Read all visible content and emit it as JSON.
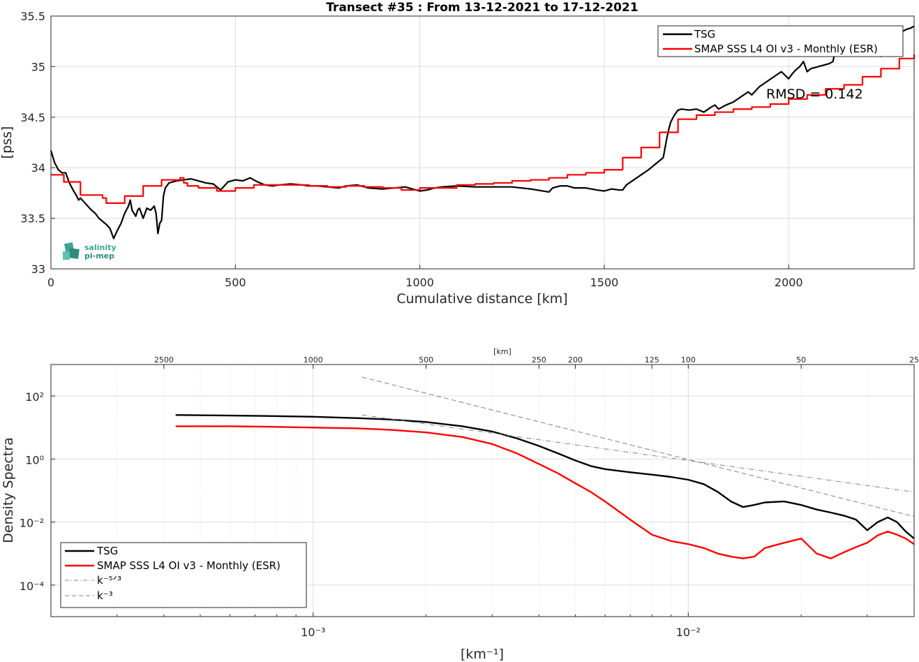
{
  "colors": {
    "tsg": "#000000",
    "smap": "#ff0000",
    "ref": "#808080",
    "logo": "#3aa693"
  },
  "logo": {
    "line1": "salinity",
    "line2": "pi-mep"
  },
  "chart_data": [
    {
      "type": "line",
      "title": "Transect #35 : From 13-12-2021 to 17-12-2021",
      "xlabel": "Cumulative distance [km]",
      "ylabel": "[pss]",
      "xlim": [
        0,
        2340
      ],
      "ylim": [
        33,
        35.5
      ],
      "xticks": [
        0,
        500,
        1000,
        1500,
        2000
      ],
      "xtick_labels": [
        "0",
        "500",
        "1000",
        "1500",
        "2000"
      ],
      "yticks": [
        33,
        33.5,
        34,
        34.5,
        35,
        35.5
      ],
      "ytick_labels": [
        "33",
        "33.5",
        "34",
        "34.5",
        "35",
        "35.5"
      ],
      "grid": true,
      "legend": "top-right",
      "annotation": "RMSD = 0.142",
      "series": [
        {
          "name": "TSG",
          "color": "#000000",
          "x": [
            0,
            10,
            20,
            30,
            40,
            50,
            60,
            70,
            75,
            80,
            90,
            100,
            110,
            120,
            130,
            140,
            150,
            160,
            165,
            170,
            180,
            190,
            200,
            210,
            215,
            220,
            225,
            230,
            235,
            240,
            250,
            260,
            270,
            280,
            285,
            290,
            295,
            300,
            305,
            310,
            320,
            340,
            360,
            380,
            400,
            420,
            440,
            460,
            465,
            470,
            480,
            500,
            520,
            540,
            560,
            580,
            600,
            620,
            650,
            680,
            700,
            720,
            750,
            780,
            800,
            830,
            860,
            900,
            930,
            960,
            1000,
            1020,
            1040,
            1060,
            1100,
            1150,
            1200,
            1250,
            1300,
            1350,
            1360,
            1380,
            1400,
            1420,
            1450,
            1480,
            1500,
            1520,
            1540,
            1550,
            1560,
            1580,
            1600,
            1620,
            1640,
            1660,
            1665,
            1670,
            1675,
            1680,
            1690,
            1700,
            1710,
            1730,
            1750,
            1770,
            1790,
            1800,
            1810,
            1830,
            1850,
            1870,
            1890,
            1900,
            1920,
            1940,
            1960,
            1980,
            2000,
            2010,
            2020,
            2030,
            2040,
            2050,
            2060,
            2080,
            2100,
            2110,
            2120,
            2130,
            2140,
            2150,
            2160,
            2170,
            2180,
            2190,
            2200,
            2210,
            2220,
            2230,
            2240,
            2250,
            2260,
            2270,
            2280,
            2290,
            2300,
            2310,
            2320,
            2330,
            2340
          ],
          "y": [
            34.17,
            34.05,
            33.98,
            33.95,
            33.95,
            33.85,
            33.78,
            33.72,
            33.68,
            33.7,
            33.66,
            33.62,
            33.58,
            33.55,
            33.5,
            33.47,
            33.44,
            33.4,
            33.35,
            33.3,
            33.38,
            33.45,
            33.55,
            33.62,
            33.68,
            33.58,
            33.55,
            33.52,
            33.58,
            33.6,
            33.5,
            33.6,
            33.58,
            33.62,
            33.55,
            33.35,
            33.45,
            33.48,
            33.72,
            33.8,
            33.85,
            33.87,
            33.88,
            33.89,
            33.87,
            33.85,
            33.84,
            33.78,
            33.8,
            33.82,
            33.86,
            33.88,
            33.87,
            33.9,
            33.86,
            33.83,
            33.82,
            33.83,
            33.84,
            33.83,
            33.82,
            33.82,
            33.81,
            33.8,
            33.82,
            33.83,
            33.8,
            33.79,
            33.8,
            33.81,
            33.77,
            33.78,
            33.8,
            33.81,
            33.82,
            33.81,
            33.81,
            33.81,
            33.79,
            33.76,
            33.8,
            33.82,
            33.82,
            33.8,
            33.8,
            33.78,
            33.77,
            33.79,
            33.78,
            33.78,
            33.83,
            33.88,
            33.93,
            33.98,
            34.04,
            34.1,
            34.2,
            34.3,
            34.38,
            34.45,
            34.52,
            34.57,
            34.58,
            34.57,
            34.58,
            34.55,
            34.6,
            34.62,
            34.58,
            34.62,
            34.65,
            34.7,
            34.75,
            34.72,
            34.8,
            34.85,
            34.9,
            34.95,
            34.88,
            34.93,
            34.97,
            35.0,
            35.05,
            34.95,
            34.98,
            35.0,
            35.02,
            35.03,
            35.05,
            35.22,
            35.3,
            35.35,
            35.33,
            35.31,
            35.27,
            35.25,
            35.2,
            35.15,
            35.2,
            35.22,
            35.25,
            35.1,
            35.18,
            35.2,
            35.15,
            35.26,
            35.3,
            35.35,
            35.37,
            35.38,
            35.4
          ]
        },
        {
          "name": "SMAP SSS L4 OI v3 - Monthly (ESR)",
          "color": "#ff0000",
          "x": [
            0,
            35,
            80,
            140,
            150,
            200,
            250,
            300,
            350,
            360,
            370,
            400,
            450,
            500,
            550,
            600,
            650,
            700,
            750,
            800,
            850,
            900,
            950,
            1000,
            1050,
            1100,
            1150,
            1200,
            1250,
            1300,
            1350,
            1400,
            1450,
            1500,
            1550,
            1600,
            1650,
            1700,
            1750,
            1800,
            1850,
            1900,
            1950,
            2000,
            2050,
            2100,
            2150,
            2200,
            2250,
            2300,
            2340
          ],
          "y": [
            33.93,
            33.86,
            33.73,
            33.7,
            33.65,
            33.72,
            33.82,
            33.88,
            33.9,
            33.85,
            33.82,
            33.8,
            33.77,
            33.8,
            33.83,
            33.83,
            33.83,
            33.82,
            33.81,
            33.82,
            33.81,
            33.8,
            33.78,
            33.8,
            33.8,
            33.83,
            33.84,
            33.85,
            33.87,
            33.88,
            33.9,
            33.93,
            33.95,
            33.98,
            34.1,
            34.2,
            34.35,
            34.48,
            34.52,
            34.55,
            34.58,
            34.6,
            34.63,
            34.68,
            34.72,
            34.78,
            34.82,
            34.9,
            34.98,
            35.08,
            35.12
          ]
        }
      ]
    },
    {
      "type": "line",
      "title": "",
      "xlabel": "[km⁻¹]",
      "ylabel": "Density Spectra",
      "top_xlabel": "[km]",
      "xscale": "log",
      "yscale": "log",
      "xlim": [
        0.0002,
        0.04
      ],
      "ylim": [
        1e-05,
        1000
      ],
      "xtick_labels": [
        "10⁻³",
        "10⁻²"
      ],
      "xticks": [
        0.001,
        0.01
      ],
      "ytick_labels": [
        "10⁻⁴",
        "10⁻²",
        "10⁰",
        "10²"
      ],
      "yticks": [
        0.0001,
        0.01,
        1,
        100
      ],
      "top_ticks_km": [
        2500,
        1000,
        500,
        250,
        200,
        125,
        100,
        50,
        25
      ],
      "top_tick_labels": [
        "2500",
        "1000",
        "500",
        "250",
        "200",
        "125",
        "100",
        "50",
        "25"
      ],
      "grid": true,
      "legend": "bottom-left",
      "series": [
        {
          "name": "TSG",
          "color": "#000000",
          "x": [
            0.00043,
            0.0006,
            0.0008,
            0.001,
            0.0013,
            0.0016,
            0.002,
            0.0025,
            0.003,
            0.0035,
            0.004,
            0.0045,
            0.005,
            0.0055,
            0.006,
            0.007,
            0.008,
            0.009,
            0.01,
            0.011,
            0.012,
            0.013,
            0.014,
            0.015,
            0.016,
            0.018,
            0.02,
            0.022,
            0.024,
            0.026,
            0.028,
            0.03,
            0.032,
            0.034,
            0.036,
            0.038,
            0.04
          ],
          "y": [
            25,
            24,
            23,
            22,
            20,
            18,
            15,
            11,
            7.5,
            4.5,
            2.6,
            1.5,
            0.9,
            0.6,
            0.48,
            0.38,
            0.32,
            0.27,
            0.22,
            0.16,
            0.09,
            0.045,
            0.03,
            0.035,
            0.042,
            0.045,
            0.035,
            0.025,
            0.02,
            0.016,
            0.012,
            0.0055,
            0.01,
            0.014,
            0.01,
            0.005,
            0.003
          ]
        },
        {
          "name": "SMAP SSS L4 OI v3 - Monthly (ESR)",
          "color": "#ff0000",
          "x": [
            0.00043,
            0.0006,
            0.0008,
            0.001,
            0.0013,
            0.0016,
            0.002,
            0.0025,
            0.003,
            0.0035,
            0.004,
            0.0045,
            0.005,
            0.0055,
            0.006,
            0.007,
            0.008,
            0.009,
            0.01,
            0.011,
            0.012,
            0.013,
            0.014,
            0.015,
            0.016,
            0.018,
            0.02,
            0.022,
            0.024,
            0.026,
            0.028,
            0.03,
            0.032,
            0.034,
            0.036,
            0.038,
            0.04
          ],
          "y": [
            11,
            11,
            10.5,
            10,
            9.5,
            8.5,
            7,
            5,
            3,
            1.5,
            0.7,
            0.35,
            0.17,
            0.09,
            0.045,
            0.012,
            0.004,
            0.0025,
            0.002,
            0.0015,
            0.001,
            0.0008,
            0.0007,
            0.0008,
            0.0015,
            0.0022,
            0.003,
            0.001,
            0.0007,
            0.0011,
            0.0016,
            0.0022,
            0.0038,
            0.005,
            0.004,
            0.003,
            0.002
          ]
        },
        {
          "name": "k⁻⁵ᐟ³",
          "color": "#808080",
          "dash": "dashdot",
          "x": [
            0.00135,
            0.04
          ],
          "y": [
            25,
            0.09
          ]
        },
        {
          "name": "k⁻³",
          "color": "#808080",
          "dash": "dashed",
          "x": [
            0.00135,
            0.04
          ],
          "y": [
            400,
            0.015
          ]
        }
      ]
    }
  ]
}
